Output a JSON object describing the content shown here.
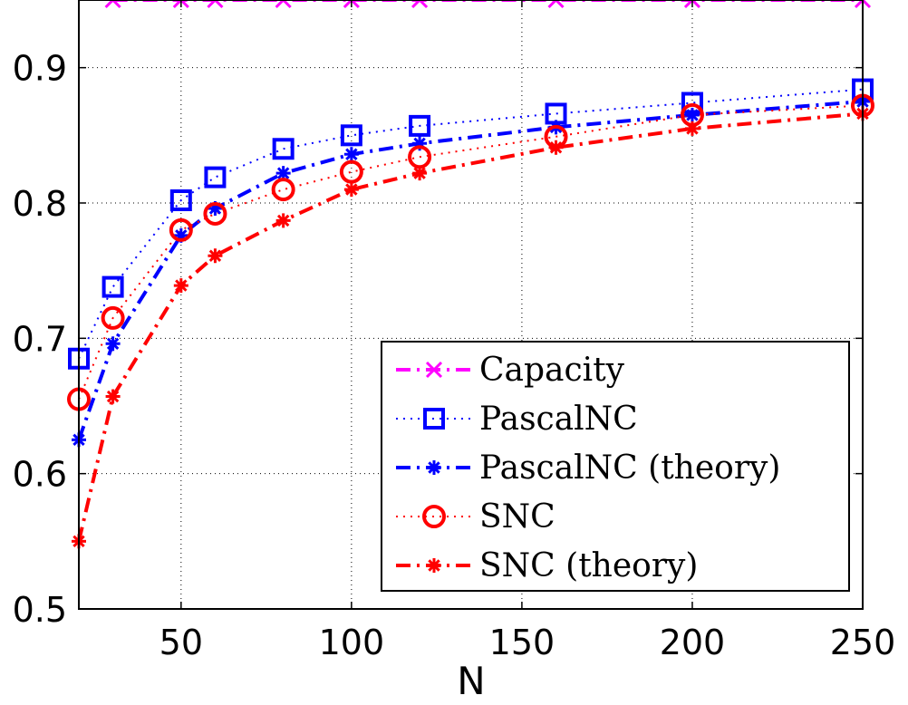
{
  "chart_data": {
    "type": "line",
    "xlabel": "N",
    "ylabel": "",
    "xlim": [
      20,
      250
    ],
    "ylim": [
      0.5,
      0.95
    ],
    "xticks": [
      "50",
      "100",
      "150",
      "200",
      "250"
    ],
    "yticks": [
      "0.5",
      "0.6",
      "0.7",
      "0.8",
      "0.9"
    ],
    "grid": true,
    "legend_position": "bottom-right",
    "series": [
      {
        "name": "Capacity",
        "color": "#ff00ff",
        "line_style": "dash-dot",
        "marker": "x",
        "x": [
          30,
          50,
          60,
          80,
          100,
          120,
          160,
          200,
          250
        ],
        "y": [
          0.95,
          0.95,
          0.95,
          0.95,
          0.95,
          0.95,
          0.95,
          0.95,
          0.95
        ]
      },
      {
        "name": "PascalNC",
        "color": "#0000ff",
        "line_style": "dotted",
        "marker": "square",
        "x": [
          20,
          30,
          50,
          60,
          80,
          100,
          120,
          160,
          200,
          250
        ],
        "y": [
          0.685,
          0.738,
          0.802,
          0.819,
          0.84,
          0.85,
          0.857,
          0.866,
          0.874,
          0.884
        ]
      },
      {
        "name": "PascalNC (theory)",
        "color": "#0000ff",
        "line_style": "dash-dot",
        "marker": "star",
        "x": [
          20,
          30,
          50,
          60,
          80,
          100,
          120,
          160,
          200,
          250
        ],
        "y": [
          0.625,
          0.696,
          0.776,
          0.796,
          0.822,
          0.836,
          0.844,
          0.856,
          0.865,
          0.875
        ]
      },
      {
        "name": "SNC",
        "color": "#ff0000",
        "line_style": "dotted",
        "marker": "circle",
        "x": [
          20,
          30,
          50,
          60,
          80,
          100,
          120,
          160,
          200,
          250
        ],
        "y": [
          0.655,
          0.715,
          0.78,
          0.792,
          0.81,
          0.823,
          0.834,
          0.849,
          0.865,
          0.872
        ]
      },
      {
        "name": "SNC (theory)",
        "color": "#ff0000",
        "line_style": "dash-dot",
        "marker": "star",
        "x": [
          20,
          30,
          50,
          60,
          80,
          100,
          120,
          160,
          200,
          250
        ],
        "y": [
          0.55,
          0.657,
          0.739,
          0.761,
          0.787,
          0.81,
          0.822,
          0.841,
          0.855,
          0.866
        ]
      }
    ]
  }
}
